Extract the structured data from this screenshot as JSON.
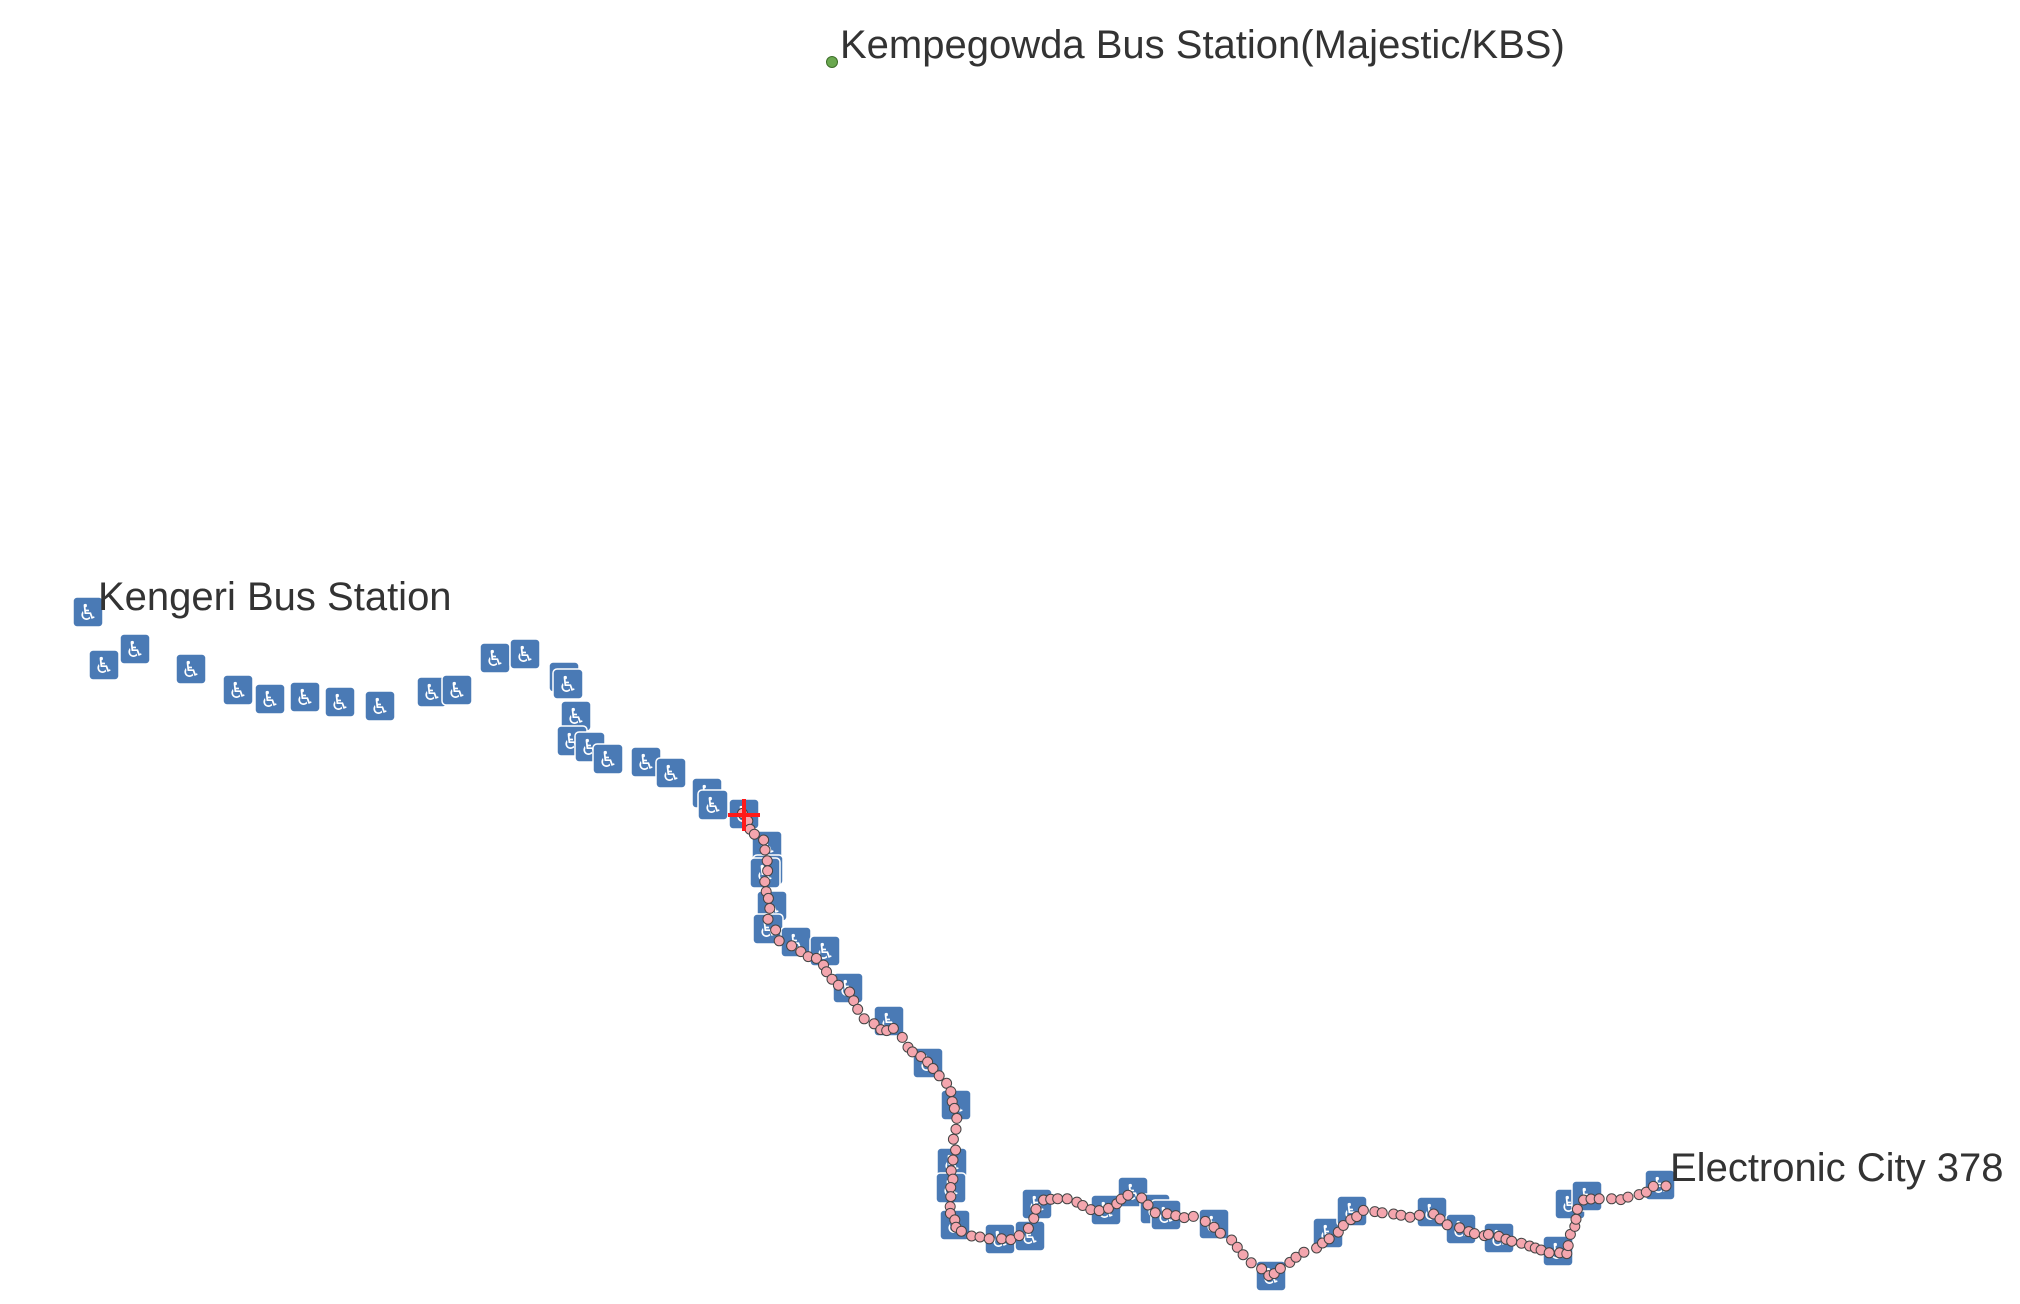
{
  "colors": {
    "accessible_marker": "#4a7ab5",
    "accessible_glyph": "#ffffff",
    "route_dot_fill": "#f4a6ae",
    "route_dot_stroke": "#444444",
    "origin_dot": "#6aa84f",
    "current_position": "#ff1a1a",
    "label_text": "#333333"
  },
  "icons": {
    "accessible_stop": "wheelchair-accessibility-icon",
    "current_position": "red-cross-position-marker"
  },
  "accessible_glyph": "♿",
  "labels": {
    "origin": "Kempegowda Bus Station(Majestic/KBS)",
    "west_terminal": "Kengeri Bus Station",
    "east_terminal": "Electronic City 378"
  }
}
